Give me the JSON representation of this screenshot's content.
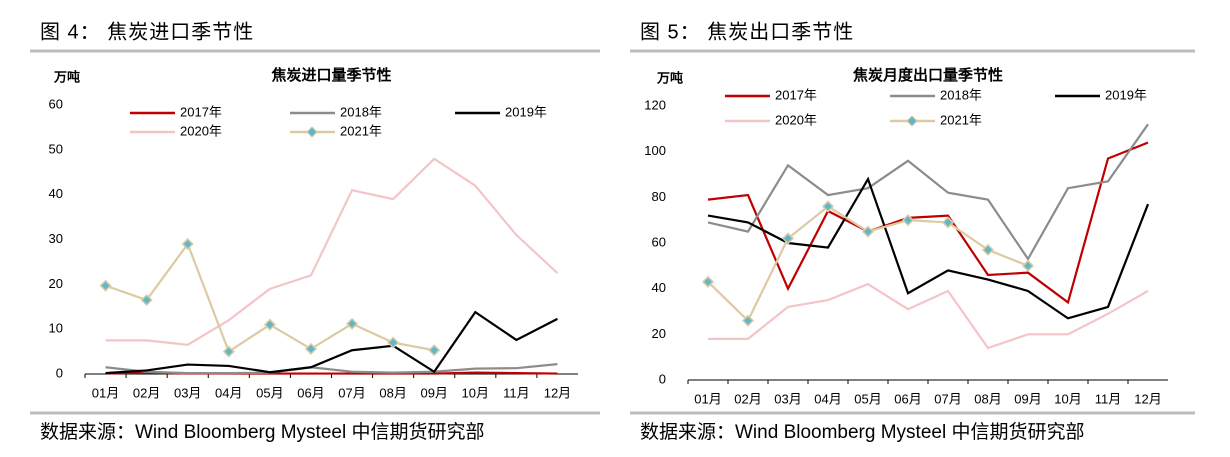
{
  "figures": [
    {
      "caption": "图 4：  焦炭进口季节性",
      "source": "数据来源：Wind Bloomberg Mysteel 中信期货研究部"
    },
    {
      "caption": "图 5：  焦炭出口季节性",
      "source": "数据来源：Wind Bloomberg Mysteel 中信期货研究部"
    }
  ],
  "chart_data": [
    {
      "type": "line",
      "title": "焦炭进口量季节性",
      "y_label": "万吨",
      "categories": [
        "01月",
        "02月",
        "03月",
        "04月",
        "05月",
        "06月",
        "07月",
        "08月",
        "09月",
        "10月",
        "11月",
        "12月"
      ],
      "ylim": [
        0,
        60
      ],
      "yticks": [
        0,
        10,
        20,
        30,
        40,
        50,
        60
      ],
      "series": [
        {
          "name": "2017年",
          "color": "#c00000",
          "values": [
            0.1,
            0.3,
            0.1,
            0.1,
            0.1,
            0.1,
            0.1,
            0.1,
            0.1,
            0.3,
            0.2,
            0.1
          ]
        },
        {
          "name": "2018年",
          "color": "#8c8c8c",
          "values": [
            1.5,
            0.5,
            0.2,
            0.2,
            0.3,
            1.5,
            0.5,
            0.3,
            0.5,
            1.2,
            1.3,
            2.2
          ]
        },
        {
          "name": "2019年",
          "color": "#000000",
          "values": [
            0.2,
            0.8,
            2.1,
            1.8,
            0.4,
            1.5,
            5.3,
            6.3,
            0.5,
            13.8,
            7.6,
            12.3
          ]
        },
        {
          "name": "2020年",
          "color": "#f4c5c8",
          "values": [
            7.5,
            7.5,
            6.5,
            12,
            19,
            22,
            41,
            39,
            48,
            42,
            31,
            22.5
          ]
        },
        {
          "name": "2021年",
          "color": "#dccaa3",
          "marker": "diamond",
          "marker_color": "#5fb8c9",
          "values": [
            19.7,
            16.5,
            29,
            5,
            11,
            5.6,
            11.2,
            7,
            5.3,
            null,
            null,
            null
          ]
        }
      ]
    },
    {
      "type": "line",
      "title": "焦炭月度出口量季节性",
      "y_label": "万吨",
      "categories": [
        "01月",
        "02月",
        "03月",
        "04月",
        "05月",
        "06月",
        "07月",
        "08月",
        "09月",
        "10月",
        "11月",
        "12月"
      ],
      "ylim": [
        0,
        120
      ],
      "yticks": [
        0,
        20,
        40,
        60,
        80,
        100,
        120
      ],
      "series": [
        {
          "name": "2017年",
          "color": "#c00000",
          "values": [
            79,
            81,
            40,
            74,
            65,
            71,
            72,
            46,
            47,
            34,
            97,
            104
          ]
        },
        {
          "name": "2018年",
          "color": "#8c8c8c",
          "values": [
            69,
            65,
            94,
            81,
            84,
            96,
            82,
            79,
            53,
            84,
            87,
            112
          ]
        },
        {
          "name": "2019年",
          "color": "#000000",
          "values": [
            72,
            69,
            60,
            58,
            88,
            38,
            48,
            44,
            39,
            27,
            32,
            77
          ]
        },
        {
          "name": "2020年",
          "color": "#f4c5c8",
          "values": [
            18,
            18,
            32,
            35,
            42,
            31,
            39,
            14,
            20,
            20,
            29,
            39
          ]
        },
        {
          "name": "2021年",
          "color": "#dccaa3",
          "marker": "diamond",
          "marker_color": "#5fb8c9",
          "values": [
            43,
            26,
            62,
            76,
            65,
            70,
            69,
            57,
            50,
            null,
            null,
            null
          ]
        }
      ]
    }
  ]
}
